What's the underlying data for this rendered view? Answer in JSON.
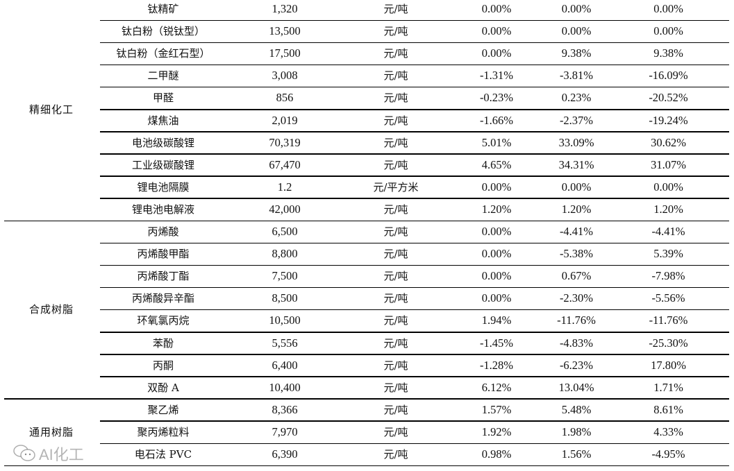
{
  "groups": [
    {
      "name": "精细化工",
      "start": 0,
      "count": 10
    },
    {
      "name": "合成树脂",
      "start": 10,
      "count": 8
    },
    {
      "name": "通用树脂",
      "start": 18,
      "count": 3
    }
  ],
  "rows": [
    {
      "product": "钛精矿",
      "price": "1,320",
      "unit": "元/吨",
      "c1": "0.00%",
      "c2": "0.00%",
      "c3": "0.00%"
    },
    {
      "product": "钛白粉（锐钛型）",
      "price": "13,500",
      "unit": "元/吨",
      "c1": "0.00%",
      "c2": "0.00%",
      "c3": "0.00%"
    },
    {
      "product": "钛白粉（金红石型）",
      "price": "17,500",
      "unit": "元/吨",
      "c1": "0.00%",
      "c2": "9.38%",
      "c3": "9.38%"
    },
    {
      "product": "二甲醚",
      "price": "3,008",
      "unit": "元/吨",
      "c1": "-1.31%",
      "c2": "-3.81%",
      "c3": "-16.09%"
    },
    {
      "product": "甲醛",
      "price": "856",
      "unit": "元/吨",
      "c1": "-0.23%",
      "c2": "0.23%",
      "c3": "-20.52%"
    },
    {
      "product": "煤焦油",
      "price": "2,019",
      "unit": "元/吨",
      "c1": "-1.66%",
      "c2": "-2.37%",
      "c3": "-19.24%"
    },
    {
      "product": "电池级碳酸锂",
      "price": "70,319",
      "unit": "元/吨",
      "c1": "5.01%",
      "c2": "33.09%",
      "c3": "30.62%"
    },
    {
      "product": "工业级碳酸锂",
      "price": "67,470",
      "unit": "元/吨",
      "c1": "4.65%",
      "c2": "34.31%",
      "c3": "31.07%"
    },
    {
      "product": "锂电池隔膜",
      "price": "1.2",
      "unit": "元/平方米",
      "c1": "0.00%",
      "c2": "0.00%",
      "c3": "0.00%"
    },
    {
      "product": "锂电池电解液",
      "price": "42,000",
      "unit": "元/吨",
      "c1": "1.20%",
      "c2": "1.20%",
      "c3": "1.20%"
    },
    {
      "product": "丙烯酸",
      "price": "6,500",
      "unit": "元/吨",
      "c1": "0.00%",
      "c2": "-4.41%",
      "c3": "-4.41%"
    },
    {
      "product": "丙烯酸甲酯",
      "price": "8,800",
      "unit": "元/吨",
      "c1": "0.00%",
      "c2": "-5.38%",
      "c3": "5.39%"
    },
    {
      "product": "丙烯酸丁酯",
      "price": "7,500",
      "unit": "元/吨",
      "c1": "0.00%",
      "c2": "0.67%",
      "c3": "-7.98%"
    },
    {
      "product": "丙烯酸异辛酯",
      "price": "8,500",
      "unit": "元/吨",
      "c1": "0.00%",
      "c2": "-2.30%",
      "c3": "-5.56%"
    },
    {
      "product": "环氧氯丙烷",
      "price": "10,500",
      "unit": "元/吨",
      "c1": "1.94%",
      "c2": "-11.76%",
      "c3": "-11.76%"
    },
    {
      "product": "苯酚",
      "price": "5,556",
      "unit": "元/吨",
      "c1": "-1.45%",
      "c2": "-4.83%",
      "c3": "-25.30%"
    },
    {
      "product": "丙酮",
      "price": "6,400",
      "unit": "元/吨",
      "c1": "-1.28%",
      "c2": "-6.23%",
      "c3": "17.80%"
    },
    {
      "product": "双酚 A",
      "price": "10,400",
      "unit": "元/吨",
      "c1": "6.12%",
      "c2": "13.04%",
      "c3": "1.71%"
    },
    {
      "product": "聚乙烯",
      "price": "8,366",
      "unit": "元/吨",
      "c1": "1.57%",
      "c2": "5.48%",
      "c3": "8.61%"
    },
    {
      "product": "聚丙烯粒料",
      "price": "7,970",
      "unit": "元/吨",
      "c1": "1.92%",
      "c2": "1.98%",
      "c3": "4.33%"
    },
    {
      "product": "电石法 PVC",
      "price": "6,390",
      "unit": "元/吨",
      "c1": "0.98%",
      "c2": "1.56%",
      "c3": "-4.95%"
    }
  ],
  "watermark": {
    "text": "AI化工",
    "icon": "wechat-icon"
  }
}
